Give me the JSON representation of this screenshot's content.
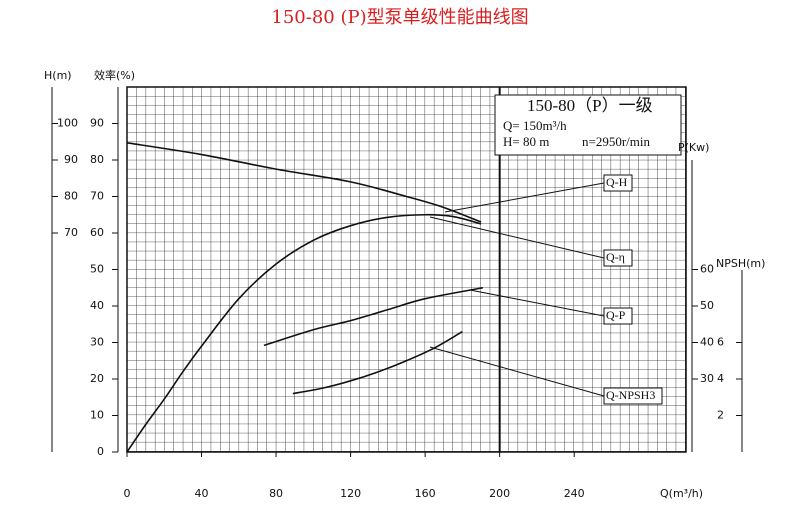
{
  "chart_data": {
    "type": "line",
    "title": "150-80 (P)型泵单级性能曲线图",
    "x_label": "Q(m³/h)",
    "y_label": "效率(%)",
    "y2_label": "H(m)",
    "y3_label": "P(Kw)",
    "y4_label": "NPSH(m)",
    "info": [
      "150-80（P）一级",
      "Q= 150m³/h",
      "H= 80 m",
      "n=2950r/min"
    ],
    "xlim": [
      0,
      300
    ],
    "xticks": [
      0,
      40,
      80,
      120,
      160,
      200,
      240
    ],
    "ylim": [
      0,
      100
    ],
    "yticks": [
      0,
      10,
      20,
      30,
      40,
      50,
      60,
      70,
      80,
      90
    ],
    "y2lim": [
      10,
      110
    ],
    "y2ticks": [
      70,
      80,
      90,
      100
    ],
    "y3lim": [
      10,
      110
    ],
    "y3ticks": [
      30,
      40,
      50,
      60
    ],
    "y4lim": [
      0,
      20
    ],
    "y4ticks": [
      2,
      4,
      6
    ],
    "grid": true,
    "color": "#111111",
    "series": [
      {
        "name": "Q-H",
        "axis": "y2",
        "x": [
          0,
          40,
          80,
          120,
          150,
          170,
          190
        ],
        "values": [
          94.7,
          91.5,
          87.5,
          84,
          80,
          77,
          73
        ]
      },
      {
        "name": "Q-η",
        "axis": "y",
        "x": [
          0,
          10,
          20,
          30,
          40,
          60,
          80,
          100,
          120,
          140,
          160,
          175,
          190
        ],
        "values": [
          0,
          7.5,
          14.5,
          22,
          29,
          42,
          51.5,
          58,
          62,
          64.3,
          65,
          64.5,
          62.5
        ]
      },
      {
        "name": "Q-P",
        "axis": "y3",
        "x": [
          73.5,
          100,
          120,
          140,
          160,
          191
        ],
        "values": [
          39.2,
          43.5,
          46,
          49,
          52,
          55
        ]
      },
      {
        "name": "Q-NPSH3",
        "axis": "y4",
        "x": [
          89,
          105,
          120,
          135,
          150,
          165,
          180
        ],
        "values": [
          3.2,
          3.5,
          3.9,
          4.4,
          5,
          5.7,
          6.6
        ]
      }
    ]
  }
}
